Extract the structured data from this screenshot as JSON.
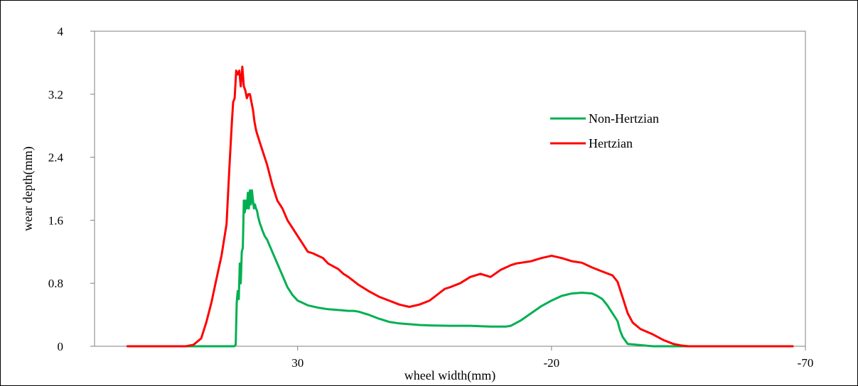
{
  "chart_data": {
    "type": "line",
    "title": "",
    "xlabel": "wheel width(mm)",
    "ylabel": "wear depth(mm)",
    "xlim": [
      70,
      -70
    ],
    "ylim": [
      0,
      4
    ],
    "x_reversed": true,
    "x_ticks": [
      30,
      -20,
      -70
    ],
    "x_tick_labels": [
      "30",
      "-20",
      "-70"
    ],
    "y_ticks": [
      0,
      0.8,
      1.6,
      2.4,
      3.2,
      4
    ],
    "y_tick_labels": [
      "0",
      "0.8",
      "1.6",
      "2.4",
      "3.2",
      "4"
    ],
    "grid": false,
    "legend_position": "top-right",
    "series": [
      {
        "name": "Non-Hertzian",
        "color": "#00b050",
        "x": [
          63.5,
          52,
          46,
          42.5,
          42.2,
          42,
          41.8,
          41.6,
          41.4,
          41.2,
          41.0,
          40.8,
          40.6,
          40.4,
          40.2,
          40.0,
          39.8,
          39.6,
          39.4,
          39.2,
          39.0,
          38.8,
          38.6,
          38.4,
          38.2,
          38.0,
          37.8,
          37.6,
          37.4,
          37.2,
          37.0,
          36.5,
          36.0,
          35.0,
          34.0,
          33.0,
          32.0,
          31.0,
          30.0,
          29.0,
          28.0,
          26.0,
          24.0,
          22.0,
          20.0,
          19.0,
          18.0,
          17.0,
          16.0,
          14.0,
          12.0,
          10.0,
          8.0,
          6.0,
          4.0,
          2.0,
          0.0,
          -2.0,
          -4.0,
          -6.0,
          -8.0,
          -10.0,
          -11.0,
          -12.0,
          -14.0,
          -16.0,
          -18.0,
          -20.0,
          -22.0,
          -24.0,
          -26.0,
          -28.0,
          -29.0,
          -30.0,
          -31.0,
          -32.0,
          -33.0,
          -33.5,
          -34.0,
          -35.0,
          -40.0,
          -55.0,
          -67.5
        ],
        "y": [
          0,
          0,
          0,
          0,
          0.02,
          0.55,
          0.7,
          0.6,
          1.05,
          0.8,
          1.2,
          1.25,
          1.85,
          1.7,
          1.85,
          1.75,
          1.95,
          1.75,
          1.98,
          1.8,
          1.98,
          1.85,
          1.75,
          1.8,
          1.75,
          1.72,
          1.65,
          1.6,
          1.55,
          1.52,
          1.48,
          1.4,
          1.35,
          1.2,
          1.05,
          0.9,
          0.75,
          0.65,
          0.58,
          0.55,
          0.52,
          0.49,
          0.47,
          0.46,
          0.45,
          0.45,
          0.44,
          0.42,
          0.4,
          0.35,
          0.31,
          0.29,
          0.28,
          0.27,
          0.265,
          0.262,
          0.26,
          0.26,
          0.26,
          0.255,
          0.25,
          0.25,
          0.25,
          0.26,
          0.33,
          0.42,
          0.51,
          0.58,
          0.64,
          0.67,
          0.68,
          0.67,
          0.64,
          0.6,
          0.52,
          0.42,
          0.32,
          0.2,
          0.12,
          0.03,
          0,
          0,
          0
        ]
      },
      {
        "name": "Hertzian",
        "color": "#ff0000",
        "x": [
          63.5,
          52,
          50.5,
          49.0,
          48.0,
          47.0,
          46.0,
          45.0,
          44.0,
          43.5,
          43.0,
          42.7,
          42.4,
          42.1,
          41.8,
          41.5,
          41.2,
          40.9,
          40.6,
          40.3,
          40.0,
          39.7,
          39.4,
          39.1,
          38.8,
          38.5,
          38.2,
          38.0,
          37.5,
          37.0,
          36.0,
          35.0,
          34.0,
          33.0,
          32.0,
          31.0,
          30.0,
          29.0,
          28.0,
          27.0,
          26.0,
          25.0,
          24.0,
          22.0,
          21.0,
          20.0,
          18.0,
          16.0,
          14.0,
          12.0,
          10.0,
          8.0,
          6.0,
          4.0,
          3.0,
          2.0,
          1.0,
          0.0,
          -2.0,
          -4.0,
          -6.0,
          -8.0,
          -10.0,
          -11.0,
          -12.0,
          -13.0,
          -14.0,
          -16.0,
          -18.0,
          -20.0,
          -22.0,
          -24.0,
          -26.0,
          -28.0,
          -30.0,
          -32.0,
          -33.0,
          -34.0,
          -35.0,
          -36.0,
          -37.5,
          -40.0,
          -42.0,
          -44.0,
          -45.5,
          -47.0,
          -55.0,
          -67.5
        ],
        "y": [
          0,
          0,
          0.02,
          0.1,
          0.3,
          0.55,
          0.85,
          1.15,
          1.55,
          2.2,
          2.8,
          3.1,
          3.15,
          3.5,
          3.45,
          3.5,
          3.3,
          3.55,
          3.3,
          3.25,
          3.15,
          3.2,
          3.2,
          3.1,
          3.0,
          2.85,
          2.75,
          2.7,
          2.6,
          2.5,
          2.3,
          2.05,
          1.85,
          1.75,
          1.6,
          1.5,
          1.4,
          1.3,
          1.2,
          1.18,
          1.15,
          1.12,
          1.05,
          0.98,
          0.92,
          0.88,
          0.78,
          0.7,
          0.63,
          0.58,
          0.53,
          0.5,
          0.53,
          0.58,
          0.63,
          0.68,
          0.73,
          0.75,
          0.8,
          0.88,
          0.92,
          0.88,
          0.97,
          1.0,
          1.03,
          1.05,
          1.06,
          1.08,
          1.12,
          1.15,
          1.12,
          1.08,
          1.06,
          1.0,
          0.95,
          0.9,
          0.82,
          0.62,
          0.42,
          0.3,
          0.22,
          0.15,
          0.08,
          0.03,
          0.01,
          0,
          0,
          0
        ]
      }
    ]
  }
}
